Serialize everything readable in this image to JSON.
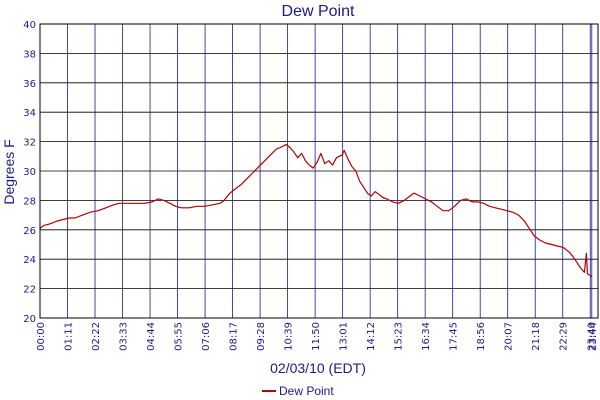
{
  "chart_data": {
    "type": "line",
    "title": "Dew Point",
    "xlabel": "02/03/10 (EDT)",
    "ylabel": "Degrees F",
    "ylim": [
      20,
      40
    ],
    "yticks": [
      20,
      22,
      24,
      26,
      28,
      30,
      32,
      34,
      36,
      38,
      40
    ],
    "xlim_minutes": [
      0,
      1440
    ],
    "xticks": [
      {
        "label": "00:00",
        "min": 0
      },
      {
        "label": "01:11",
        "min": 71
      },
      {
        "label": "02:22",
        "min": 142
      },
      {
        "label": "03:33",
        "min": 213
      },
      {
        "label": "04:44",
        "min": 284
      },
      {
        "label": "05:55",
        "min": 355
      },
      {
        "label": "07:06",
        "min": 426
      },
      {
        "label": "08:17",
        "min": 497
      },
      {
        "label": "09:28",
        "min": 568
      },
      {
        "label": "10:39",
        "min": 639
      },
      {
        "label": "11:50",
        "min": 710
      },
      {
        "label": "13:01",
        "min": 781
      },
      {
        "label": "14:12",
        "min": 852
      },
      {
        "label": "15:23",
        "min": 923
      },
      {
        "label": "16:34",
        "min": 994
      },
      {
        "label": "17:45",
        "min": 1065
      },
      {
        "label": "18:56",
        "min": 1136
      },
      {
        "label": "20:07",
        "min": 1207
      },
      {
        "label": "21:18",
        "min": 1278
      },
      {
        "label": "22:29",
        "min": 1349
      },
      {
        "label": "23:40",
        "min": 1420
      },
      {
        "label": "23:44",
        "min": 1424
      }
    ],
    "grid": true,
    "legend_position": "bottom",
    "series": [
      {
        "name": "Dew Point",
        "color": "#b40000",
        "points": [
          [
            "00:00",
            26.1
          ],
          [
            "00:10",
            26.3
          ],
          [
            "00:25",
            26.4
          ],
          [
            "00:45",
            26.6
          ],
          [
            "01:00",
            26.7
          ],
          [
            "01:15",
            26.8
          ],
          [
            "01:30",
            26.8
          ],
          [
            "01:50",
            27.0
          ],
          [
            "02:10",
            27.2
          ],
          [
            "02:30",
            27.3
          ],
          [
            "02:50",
            27.5
          ],
          [
            "03:10",
            27.7
          ],
          [
            "03:25",
            27.8
          ],
          [
            "03:45",
            27.8
          ],
          [
            "04:10",
            27.8
          ],
          [
            "04:30",
            27.8
          ],
          [
            "04:50",
            27.9
          ],
          [
            "05:05",
            28.1
          ],
          [
            "05:20",
            28.0
          ],
          [
            "05:35",
            27.8
          ],
          [
            "05:50",
            27.6
          ],
          [
            "06:05",
            27.5
          ],
          [
            "06:25",
            27.5
          ],
          [
            "06:45",
            27.6
          ],
          [
            "07:05",
            27.6
          ],
          [
            "07:25",
            27.7
          ],
          [
            "07:45",
            27.8
          ],
          [
            "07:55",
            28.0
          ],
          [
            "08:10",
            28.5
          ],
          [
            "08:25",
            28.8
          ],
          [
            "08:40",
            29.1
          ],
          [
            "08:55",
            29.5
          ],
          [
            "09:10",
            29.9
          ],
          [
            "09:25",
            30.3
          ],
          [
            "09:40",
            30.7
          ],
          [
            "09:55",
            31.1
          ],
          [
            "10:10",
            31.5
          ],
          [
            "10:20",
            31.6
          ],
          [
            "10:35",
            31.8
          ],
          [
            "10:45",
            31.6
          ],
          [
            "10:55",
            31.3
          ],
          [
            "11:05",
            30.9
          ],
          [
            "11:15",
            31.2
          ],
          [
            "11:25",
            30.7
          ],
          [
            "11:35",
            30.4
          ],
          [
            "11:45",
            30.2
          ],
          [
            "11:55",
            30.6
          ],
          [
            "12:05",
            31.2
          ],
          [
            "12:15",
            30.5
          ],
          [
            "12:25",
            30.7
          ],
          [
            "12:35",
            30.4
          ],
          [
            "12:45",
            30.9
          ],
          [
            "13:00",
            31.1
          ],
          [
            "13:05",
            31.4
          ],
          [
            "13:15",
            30.8
          ],
          [
            "13:25",
            30.3
          ],
          [
            "13:35",
            30.0
          ],
          [
            "13:45",
            29.3
          ],
          [
            "13:55",
            28.9
          ],
          [
            "14:05",
            28.5
          ],
          [
            "14:15",
            28.3
          ],
          [
            "14:25",
            28.6
          ],
          [
            "14:35",
            28.4
          ],
          [
            "14:45",
            28.2
          ],
          [
            "14:55",
            28.1
          ],
          [
            "15:10",
            27.9
          ],
          [
            "15:25",
            27.8
          ],
          [
            "15:40",
            28.0
          ],
          [
            "15:55",
            28.3
          ],
          [
            "16:05",
            28.5
          ],
          [
            "16:20",
            28.3
          ],
          [
            "16:35",
            28.1
          ],
          [
            "16:50",
            27.9
          ],
          [
            "17:05",
            27.6
          ],
          [
            "17:20",
            27.3
          ],
          [
            "17:35",
            27.3
          ],
          [
            "17:50",
            27.6
          ],
          [
            "18:05",
            28.0
          ],
          [
            "18:20",
            28.1
          ],
          [
            "18:35",
            27.9
          ],
          [
            "18:50",
            27.9
          ],
          [
            "19:05",
            27.8
          ],
          [
            "19:20",
            27.6
          ],
          [
            "19:35",
            27.5
          ],
          [
            "19:50",
            27.4
          ],
          [
            "20:05",
            27.3
          ],
          [
            "20:20",
            27.2
          ],
          [
            "20:35",
            27.0
          ],
          [
            "20:50",
            26.6
          ],
          [
            "21:05",
            26.0
          ],
          [
            "21:15",
            25.6
          ],
          [
            "21:30",
            25.3
          ],
          [
            "21:45",
            25.1
          ],
          [
            "22:00",
            25.0
          ],
          [
            "22:15",
            24.9
          ],
          [
            "22:30",
            24.8
          ],
          [
            "22:45",
            24.5
          ],
          [
            "22:55",
            24.2
          ],
          [
            "23:05",
            23.8
          ],
          [
            "23:15",
            23.4
          ],
          [
            "23:25",
            23.1
          ],
          [
            "23:30",
            24.4
          ],
          [
            "23:33",
            23.0
          ],
          [
            "23:40",
            22.9
          ],
          [
            "23:44",
            22.8
          ]
        ]
      }
    ]
  }
}
